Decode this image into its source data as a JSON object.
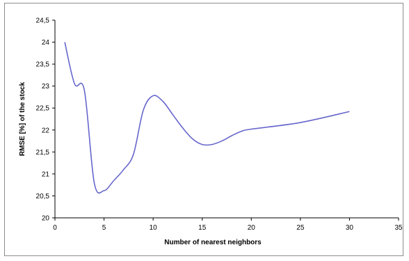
{
  "chart_data": {
    "type": "line",
    "title": "",
    "xlabel": "Number of nearest neighbors",
    "ylabel": "RMSE [%] of the stock",
    "xlim": [
      0,
      35
    ],
    "ylim": [
      20,
      24.5
    ],
    "x_ticks": [
      0,
      5,
      10,
      15,
      20,
      25,
      30,
      35
    ],
    "x_tick_labels": [
      "0",
      "5",
      "10",
      "15",
      "20",
      "25",
      "30",
      "35"
    ],
    "y_ticks": [
      20,
      20.5,
      21,
      21.5,
      22,
      22.5,
      23,
      23.5,
      24,
      24.5
    ],
    "y_tick_labels": [
      "20",
      "20,5",
      "21",
      "21,5",
      "22",
      "22,5",
      "23",
      "23,5",
      "24",
      "24,5"
    ],
    "grid": false,
    "legend": "none",
    "series": [
      {
        "color": "#6666cc",
        "x": [
          1,
          2,
          3,
          4,
          5,
          6,
          7,
          8,
          9,
          10,
          11,
          12,
          13,
          14,
          15,
          16,
          17,
          18,
          19,
          20,
          25,
          30
        ],
        "y": [
          24.0,
          23.05,
          22.9,
          20.8,
          20.62,
          20.85,
          21.1,
          21.45,
          22.45,
          22.78,
          22.65,
          22.35,
          22.05,
          21.8,
          21.67,
          21.67,
          21.75,
          21.87,
          21.97,
          22.02,
          22.17,
          22.42
        ]
      }
    ]
  }
}
